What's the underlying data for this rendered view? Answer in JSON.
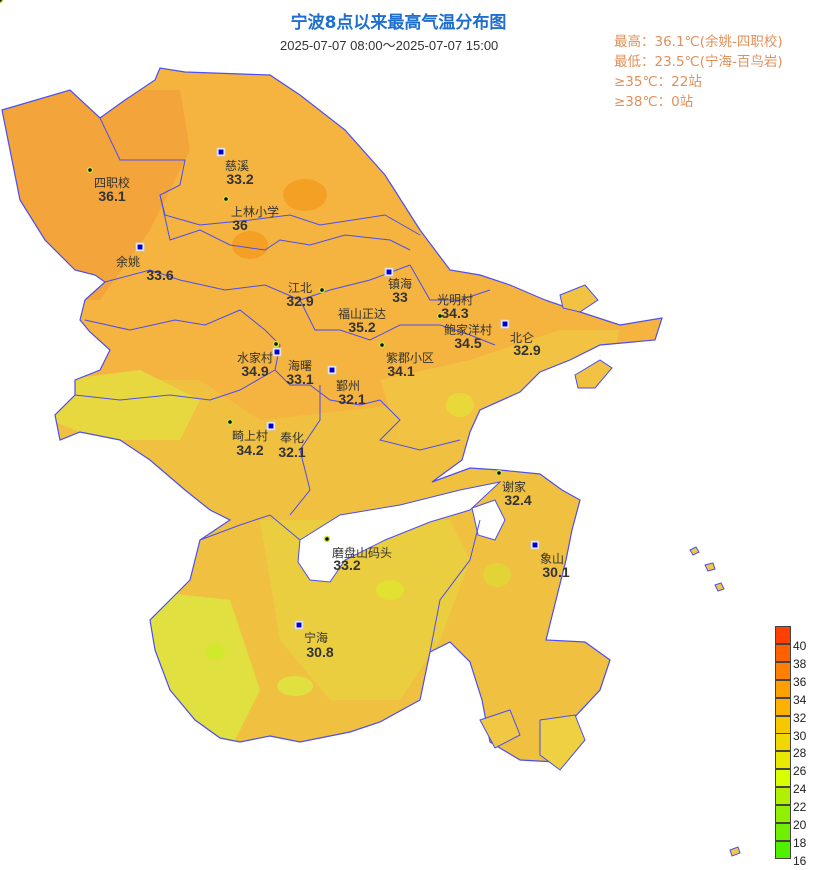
{
  "title": "宁波8点以来最高气温分布图",
  "subtitle": "2025-07-07  08:00～2025-07-07 15:00",
  "stats": [
    "最高：36.1℃(余姚-四职校)",
    "最低：23.5℃(宁海-百鸟岩)",
    "≥35℃：22站",
    "≥38℃：0站"
  ],
  "colors": {
    "title": "#1f6fd0",
    "stats": "#e0905a",
    "boundary": "#4b4ef0",
    "marker_square": "#0000cc"
  },
  "stations": [
    {
      "name": "四职校",
      "value": "36.1",
      "marker": "dot"
    },
    {
      "name": "慈溪",
      "value": "33.2",
      "marker": "square"
    },
    {
      "name": "上林小学",
      "value": "36",
      "marker": "dot"
    },
    {
      "name": "余姚",
      "value": "33.6",
      "marker": "square"
    },
    {
      "name": "江北",
      "value": "32.9",
      "marker": "dot"
    },
    {
      "name": "镇海",
      "value": "33",
      "marker": "square"
    },
    {
      "name": "光明村",
      "value": "34.3",
      "marker": "dot"
    },
    {
      "name": "福山正达",
      "value": "35.2",
      "marker": "none"
    },
    {
      "name": "鲍家洋村",
      "value": "34.5",
      "marker": "dot"
    },
    {
      "name": "北仑",
      "value": "32.9",
      "marker": "square"
    },
    {
      "name": "水家村",
      "value": "34.9",
      "marker": "dot"
    },
    {
      "name": "海曙",
      "value": "33.1",
      "marker": "square"
    },
    {
      "name": "鄞州",
      "value": "32.1",
      "marker": "square"
    },
    {
      "name": "紫郡小区",
      "value": "34.1",
      "marker": "dot"
    },
    {
      "name": "畸上村",
      "value": "34.2",
      "marker": "dot"
    },
    {
      "name": "奉化",
      "value": "32.1",
      "marker": "square"
    },
    {
      "name": "谢家",
      "value": "32.4",
      "marker": "dot"
    },
    {
      "name": "象山",
      "value": "30.1",
      "marker": "square"
    },
    {
      "name": "磨盘山码头",
      "value": "33.2",
      "marker": "dot"
    },
    {
      "name": "宁海",
      "value": "30.8",
      "marker": "square"
    }
  ],
  "legend": {
    "labels": [
      "40",
      "38",
      "36",
      "34",
      "32",
      "30",
      "28",
      "26",
      "24",
      "22",
      "20",
      "18",
      "16"
    ],
    "colors": [
      "#ff4000",
      "#ff6000",
      "#ff8000",
      "#ffa000",
      "#ffb000",
      "#f5c800",
      "#f0d800",
      "#e8e800",
      "#d8ff00",
      "#b0f000",
      "#90f000",
      "#70f000",
      "#50f000"
    ]
  }
}
